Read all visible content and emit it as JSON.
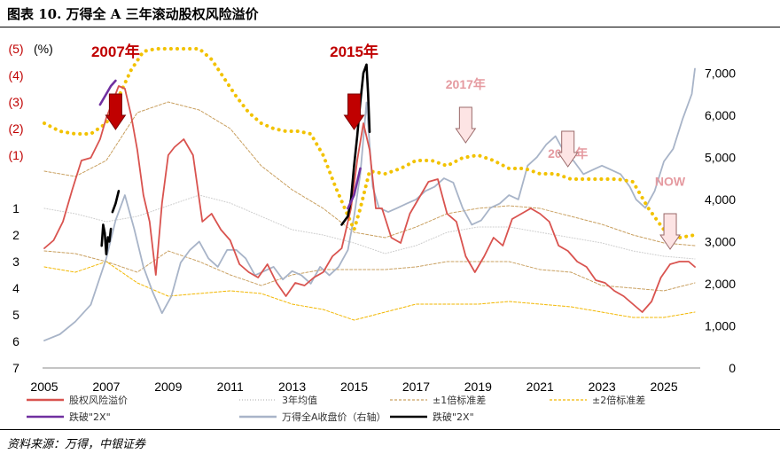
{
  "figure": {
    "title": "图表 10. 万得全 A 三年滚动股权风险溢价",
    "source": "资料来源：万得，中银证券"
  },
  "chart_data": {
    "type": "line",
    "x_ticks": [
      "2005",
      "2007",
      "2009",
      "2011",
      "2013",
      "2015",
      "2017",
      "2019",
      "2021",
      "2023",
      "2025"
    ],
    "left_axis": {
      "inverted": true,
      "unit_label": "(%)",
      "tick_labels": [
        "(5)",
        "(4)",
        "(3)",
        "(2)",
        "(1)",
        "1",
        "2",
        "3",
        "4",
        "5",
        "6",
        "7"
      ],
      "tick_values": [
        -5,
        -4,
        -3,
        -2,
        -1,
        1,
        2,
        3,
        4,
        5,
        6,
        7
      ],
      "range": [
        -5,
        7
      ],
      "negative_color": "#c00000"
    },
    "right_axis": {
      "tick_labels": [
        "0",
        "1,000",
        "2,000",
        "3,000",
        "4,000",
        "5,000",
        "6,000",
        "7,000"
      ],
      "range": [
        0,
        7700
      ]
    },
    "legend": {
      "entries": [
        {
          "label": "股权风险溢价",
          "color": "#d9534f",
          "style": "solid"
        },
        {
          "label": "3年均值",
          "color": "#bbbbbb",
          "style": "dotted"
        },
        {
          "label": "±1倍标准差",
          "color": "#c9a060",
          "style": "dashed"
        },
        {
          "label": "±2倍标准差",
          "color": "#f2b700",
          "style": "dashed"
        },
        {
          "label": "跌破\"2X\"",
          "color": "#7030a0",
          "style": "solid"
        },
        {
          "label": "万得全A收盘价（右轴）",
          "color": "#a8b4c8",
          "style": "solid"
        },
        {
          "label": "跌破\"2X\"",
          "color": "#000000",
          "style": "solid"
        }
      ]
    },
    "annotations": [
      {
        "text": "2007年",
        "x": 2007.3,
        "y": -4.7,
        "color": "#c00000",
        "arrow": "solid-red",
        "arrow_top_y": -3.3
      },
      {
        "text": "2015年",
        "x": 2015.0,
        "y": -4.7,
        "color": "#c00000",
        "arrow": "solid-red",
        "arrow_top_y": -3.3
      },
      {
        "text": "2017年",
        "x": 2018.6,
        "y": -3.5,
        "color": "#e59aa0",
        "arrow": "outline",
        "arrow_top_y": -2.8
      },
      {
        "text": "2021年",
        "x": 2021.9,
        "y": -0.9,
        "color": "#e59aa0",
        "arrow": "outline",
        "arrow_top_y": -1.9
      },
      {
        "text": "NOW",
        "x": 2025.2,
        "y": 0.15,
        "color": "#e59aa0",
        "arrow": "outline",
        "arrow_top_y": 1.2
      }
    ],
    "series": [
      {
        "name": "股权风险溢价",
        "axis": "left",
        "color": "#d9534f",
        "style": "solid",
        "x": [
          2005.0,
          2005.3,
          2005.6,
          2005.9,
          2006.2,
          2006.5,
          2006.8,
          2007.0,
          2007.2,
          2007.4,
          2007.6,
          2007.8,
          2008.0,
          2008.2,
          2008.4,
          2008.6,
          2008.8,
          2009.0,
          2009.2,
          2009.5,
          2009.8,
          2010.1,
          2010.4,
          2010.7,
          2011.0,
          2011.3,
          2011.6,
          2011.9,
          2012.2,
          2012.5,
          2012.8,
          2013.1,
          2013.4,
          2013.7,
          2014.0,
          2014.3,
          2014.6,
          2014.9,
          2015.1,
          2015.3,
          2015.5,
          2015.7,
          2015.9,
          2016.2,
          2016.5,
          2016.8,
          2017.1,
          2017.4,
          2017.7,
          2018.0,
          2018.3,
          2018.6,
          2018.9,
          2019.2,
          2019.5,
          2019.8,
          2020.1,
          2020.4,
          2020.7,
          2021.0,
          2021.3,
          2021.6,
          2021.9,
          2022.2,
          2022.5,
          2022.8,
          2023.1,
          2023.4,
          2023.7,
          2024.0,
          2024.3,
          2024.6,
          2024.9,
          2025.2,
          2025.5,
          2025.8,
          2026.0
        ],
        "y": [
          2.5,
          2.2,
          1.5,
          0.3,
          -0.8,
          -0.9,
          -1.6,
          -2.4,
          -3.0,
          -3.6,
          -3.5,
          -2.5,
          -1.2,
          0.5,
          1.5,
          3.5,
          0.8,
          -1.0,
          -1.3,
          -1.6,
          -1.0,
          1.5,
          1.2,
          1.8,
          2.2,
          3.1,
          3.4,
          3.6,
          3.1,
          3.8,
          4.3,
          3.8,
          3.9,
          3.6,
          3.4,
          2.8,
          2.5,
          1.0,
          -0.8,
          -2.2,
          -1.2,
          1.0,
          1.0,
          2.1,
          2.3,
          1.2,
          0.6,
          0.0,
          -0.1,
          1.2,
          1.5,
          2.8,
          3.4,
          2.8,
          2.1,
          2.4,
          1.4,
          1.2,
          1.0,
          1.2,
          1.5,
          2.4,
          2.6,
          3.0,
          3.2,
          3.7,
          3.8,
          4.1,
          4.3,
          4.6,
          4.9,
          4.5,
          3.6,
          3.1,
          3.0,
          3.0,
          3.2
        ]
      },
      {
        "name": "万得全A收盘价（右轴）",
        "axis": "right",
        "color": "#a8b4c8",
        "style": "solid",
        "x": [
          2005.0,
          2005.5,
          2006.0,
          2006.5,
          2007.0,
          2007.3,
          2007.6,
          2007.9,
          2008.2,
          2008.5,
          2008.8,
          2009.1,
          2009.4,
          2009.7,
          2010.0,
          2010.3,
          2010.6,
          2010.9,
          2011.2,
          2011.5,
          2011.8,
          2012.1,
          2012.4,
          2012.7,
          2013.0,
          2013.3,
          2013.6,
          2013.9,
          2014.2,
          2014.5,
          2014.8,
          2015.0,
          2015.2,
          2015.4,
          2015.6,
          2015.8,
          2016.1,
          2016.4,
          2016.7,
          2017.0,
          2017.3,
          2017.6,
          2017.9,
          2018.2,
          2018.5,
          2018.8,
          2019.1,
          2019.4,
          2019.7,
          2020.0,
          2020.3,
          2020.6,
          2020.9,
          2021.2,
          2021.5,
          2021.8,
          2022.1,
          2022.4,
          2022.7,
          2023.0,
          2023.3,
          2023.6,
          2023.9,
          2024.1,
          2024.4,
          2024.7,
          2025.0,
          2025.3,
          2025.6,
          2025.9,
          2026.0
        ],
        "y": [
          650,
          800,
          1100,
          1500,
          2600,
          3500,
          4100,
          3300,
          2400,
          1800,
          1300,
          1700,
          2500,
          2800,
          3000,
          2600,
          2400,
          2800,
          2800,
          2600,
          2200,
          2300,
          2400,
          2100,
          2300,
          2200,
          2000,
          2400,
          2200,
          2400,
          2800,
          3600,
          4600,
          6300,
          4300,
          3800,
          3700,
          3800,
          3900,
          4000,
          4200,
          4300,
          4500,
          4400,
          3800,
          3400,
          3500,
          3800,
          3900,
          4100,
          4000,
          4800,
          5000,
          5300,
          5500,
          5100,
          4900,
          4600,
          4700,
          4800,
          4700,
          4600,
          4300,
          4000,
          3800,
          4200,
          4900,
          5200,
          5900,
          6500,
          7100
        ]
      },
      {
        "name": "跌破\"2X\"",
        "axis": "right",
        "color": "#000000",
        "style": "solid",
        "segments": [
          {
            "x": [
              2006.85,
              2006.9,
              2006.95,
              2007.0,
              2007.05,
              2007.1,
              2007.15
            ],
            "y": [
              2900,
              3400,
              3200,
              2700,
              3100,
              3000,
              3300
            ]
          },
          {
            "x": [
              2007.2,
              2007.3,
              2007.4
            ],
            "y": [
              3700,
              3900,
              4200
            ]
          },
          {
            "x": [
              2014.6,
              2014.7,
              2014.8,
              2014.9,
              2015.0,
              2015.1,
              2015.2,
              2015.3,
              2015.4,
              2015.45,
              2015.5
            ],
            "y": [
              3400,
              3500,
              3600,
              4000,
              4800,
              5500,
              6300,
              7000,
              7200,
              6500,
              5600
            ]
          }
        ]
      },
      {
        "name": "跌破\"2X\"",
        "axis": "left",
        "color": "#7030a0",
        "style": "solid",
        "segments": [
          {
            "x": [
              2006.8,
              2007.0,
              2007.15,
              2007.3
            ],
            "y": [
              -2.9,
              -3.3,
              -3.6,
              -3.8
            ]
          },
          {
            "x": [
              2014.8,
              2015.0,
              2015.2
            ],
            "y": [
              1.0,
              0.5,
              -0.5
            ]
          }
        ]
      },
      {
        "name": "3年均值",
        "axis": "left",
        "color": "#cccccc",
        "style": "dotted",
        "x": [
          2005,
          2006,
          2007,
          2008,
          2009,
          2010,
          2011,
          2012,
          2013,
          2014,
          2015,
          2016,
          2017,
          2018,
          2019,
          2020,
          2021,
          2022,
          2023,
          2024,
          2025,
          2026
        ],
        "y": [
          1.0,
          1.2,
          1.5,
          1.3,
          0.9,
          0.5,
          0.8,
          1.3,
          1.8,
          2.0,
          2.3,
          2.7,
          2.4,
          1.9,
          1.7,
          1.7,
          1.9,
          2.1,
          2.3,
          2.6,
          2.8,
          2.9
        ]
      },
      {
        "name": "±1倍标准差",
        "axis": "left",
        "color": "#c9a060",
        "style": "dashed",
        "x": [
          2005,
          2006,
          2007,
          2008,
          2009,
          2010,
          2011,
          2012,
          2013,
          2014,
          2015,
          2016,
          2017,
          2018,
          2019,
          2020,
          2021,
          2022,
          2023,
          2024,
          2025,
          2026
        ],
        "y": [
          -0.4,
          -0.2,
          -0.8,
          -2.6,
          -3.0,
          -2.7,
          -2.0,
          -0.6,
          0.3,
          1.0,
          1.9,
          2.1,
          1.7,
          1.2,
          1.0,
          0.9,
          1.0,
          1.3,
          1.6,
          2.0,
          2.3,
          2.4
        ]
      },
      {
        "name": "±1倍标准差",
        "axis": "left",
        "color": "#c9a060",
        "style": "dashed",
        "x": [
          2005,
          2006,
          2007,
          2008,
          2009,
          2010,
          2011,
          2012,
          2013,
          2014,
          2015,
          2016,
          2017,
          2018,
          2019,
          2020,
          2021,
          2022,
          2023,
          2024,
          2025,
          2026
        ],
        "y": [
          2.6,
          2.7,
          3.0,
          3.4,
          2.6,
          3.0,
          3.5,
          3.9,
          3.5,
          3.3,
          3.3,
          3.3,
          3.2,
          3.0,
          3.0,
          3.0,
          3.3,
          3.4,
          3.9,
          4.0,
          4.1,
          3.8
        ]
      },
      {
        "name": "±2倍标准差",
        "axis": "left",
        "color": "#f2b700",
        "style": "dashed",
        "x": [
          2005,
          2006,
          2007,
          2008,
          2009,
          2010,
          2011,
          2012,
          2013,
          2014,
          2015,
          2016,
          2017,
          2018,
          2019,
          2020,
          2021,
          2022,
          2023,
          2024,
          2025,
          2026
        ],
        "y": [
          3.2,
          3.4,
          3.0,
          3.8,
          4.3,
          4.2,
          4.1,
          4.2,
          4.6,
          4.8,
          5.2,
          4.9,
          4.6,
          4.6,
          4.6,
          4.5,
          4.6,
          4.7,
          4.9,
          5.1,
          5.1,
          4.9
        ]
      },
      {
        "name": "±2倍标准差",
        "axis": "left",
        "color": "#f2c200",
        "style": "dotted-bold",
        "x": [
          2005.0,
          2005.5,
          2006.0,
          2006.5,
          2007.0,
          2007.4,
          2007.8,
          2008.2,
          2008.6,
          2009.0,
          2009.5,
          2010.0,
          2010.4,
          2010.8,
          2011.2,
          2011.6,
          2012.0,
          2012.4,
          2012.8,
          2013.2,
          2013.6,
          2014.0,
          2014.4,
          2014.7,
          2015.0,
          2015.2,
          2015.5,
          2016.0,
          2016.5,
          2017.0,
          2017.5,
          2018.0,
          2018.5,
          2019.0,
          2019.5,
          2020.0,
          2020.5,
          2021.0,
          2021.5,
          2022.0,
          2022.5,
          2023.0,
          2023.5,
          2024.0,
          2024.5,
          2025.0,
          2025.5,
          2026.0
        ],
        "y": [
          -2.2,
          -1.9,
          -1.8,
          -1.8,
          -2.2,
          -3.2,
          -4.2,
          -4.9,
          -5.0,
          -5.0,
          -5.0,
          -5.0,
          -4.6,
          -3.9,
          -3.2,
          -2.6,
          -2.2,
          -2.0,
          -1.9,
          -1.9,
          -1.8,
          -1.0,
          0.2,
          1.0,
          1.8,
          1.0,
          -0.4,
          -0.3,
          -0.5,
          -0.8,
          -0.8,
          -0.6,
          -0.9,
          -1.0,
          -0.8,
          -0.5,
          -0.5,
          -0.3,
          -0.3,
          -0.1,
          -0.1,
          -0.1,
          -0.1,
          0.0,
          1.0,
          1.8,
          2.1,
          2.0
        ]
      }
    ]
  }
}
